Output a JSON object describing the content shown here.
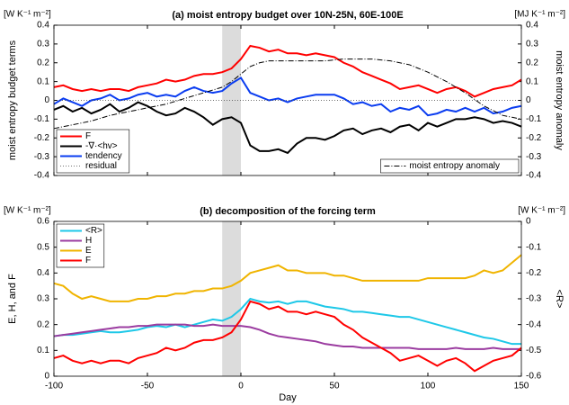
{
  "chart_data": [
    {
      "type": "line",
      "title": "(a)    moist entropy budget over 10N-25N, 60E-100E",
      "y_unit": "[W K⁻¹ m⁻²]",
      "y2_unit": "[MJ K⁻¹ m⁻²]",
      "ylabel": "moist entropy budget terms",
      "y2label": "moist entropy anomaly",
      "xlim": [
        -100,
        150
      ],
      "xticks": [
        -100,
        -50,
        0,
        50,
        100,
        150
      ],
      "show_xticklabels": false,
      "ylim": [
        -0.4,
        0.4
      ],
      "yticks": [
        -0.4,
        -0.3,
        -0.2,
        -0.1,
        0,
        0.1,
        0.2,
        0.3,
        0.4
      ],
      "y2lim": [
        -0.4,
        0.4
      ],
      "y2ticks": [
        -0.4,
        -0.3,
        -0.2,
        -0.1,
        0,
        0.1,
        0.2,
        0.3,
        0.4
      ],
      "shade": [
        -10,
        0
      ],
      "legend": "lower left",
      "legend2": "lower right",
      "x": [
        -100,
        -95,
        -90,
        -85,
        -80,
        -75,
        -70,
        -65,
        -60,
        -55,
        -50,
        -45,
        -40,
        -35,
        -30,
        -25,
        -20,
        -15,
        -10,
        -5,
        0,
        5,
        10,
        15,
        20,
        25,
        30,
        35,
        40,
        45,
        50,
        55,
        60,
        65,
        70,
        75,
        80,
        85,
        90,
        95,
        100,
        105,
        110,
        115,
        120,
        125,
        130,
        135,
        140,
        145,
        150
      ],
      "series": [
        {
          "name": "F",
          "color": "#ff0000",
          "dash": "solid",
          "width": 2,
          "values": [
            0.07,
            0.08,
            0.06,
            0.05,
            0.06,
            0.05,
            0.06,
            0.06,
            0.05,
            0.07,
            0.08,
            0.09,
            0.11,
            0.1,
            0.11,
            0.13,
            0.14,
            0.14,
            0.15,
            0.17,
            0.22,
            0.29,
            0.28,
            0.26,
            0.27,
            0.25,
            0.25,
            0.24,
            0.25,
            0.24,
            0.23,
            0.2,
            0.18,
            0.15,
            0.13,
            0.11,
            0.09,
            0.06,
            0.07,
            0.08,
            0.06,
            0.04,
            0.06,
            0.07,
            0.05,
            0.02,
            0.04,
            0.06,
            0.07,
            0.08,
            0.11
          ]
        },
        {
          "name": "-∇·<hv>",
          "color": "#000000",
          "dash": "solid",
          "width": 2,
          "values": [
            -0.05,
            -0.03,
            -0.06,
            -0.04,
            -0.07,
            -0.05,
            -0.02,
            -0.06,
            -0.04,
            -0.01,
            -0.03,
            -0.06,
            -0.08,
            -0.07,
            -0.04,
            -0.06,
            -0.09,
            -0.13,
            -0.1,
            -0.09,
            -0.12,
            -0.24,
            -0.27,
            -0.27,
            -0.26,
            -0.28,
            -0.23,
            -0.2,
            -0.2,
            -0.21,
            -0.19,
            -0.16,
            -0.15,
            -0.18,
            -0.16,
            -0.15,
            -0.17,
            -0.14,
            -0.13,
            -0.16,
            -0.12,
            -0.14,
            -0.12,
            -0.1,
            -0.1,
            -0.09,
            -0.1,
            -0.12,
            -0.11,
            -0.12,
            -0.14
          ]
        },
        {
          "name": "tendency",
          "color": "#0a3cf0",
          "dash": "solid",
          "width": 2,
          "values": [
            -0.02,
            0.01,
            -0.01,
            -0.03,
            0.0,
            0.01,
            0.03,
            0.0,
            0.01,
            0.03,
            0.04,
            0.02,
            0.03,
            0.02,
            0.05,
            0.07,
            0.05,
            0.04,
            0.05,
            0.09,
            0.12,
            0.04,
            0.02,
            0.0,
            0.01,
            -0.01,
            0.01,
            0.02,
            0.03,
            0.03,
            0.03,
            0.01,
            -0.02,
            -0.01,
            -0.03,
            -0.02,
            -0.06,
            -0.04,
            -0.05,
            -0.03,
            -0.08,
            -0.07,
            -0.05,
            -0.06,
            -0.04,
            -0.06,
            -0.04,
            -0.07,
            -0.06,
            -0.04,
            -0.03
          ]
        },
        {
          "name": "residual",
          "color": "#444444",
          "dash": "dotted",
          "width": 0.8,
          "values": [
            0,
            0,
            0,
            0,
            0,
            0,
            0,
            0,
            0,
            0,
            0,
            0,
            0,
            0,
            0,
            0,
            0,
            0,
            0,
            0,
            0,
            0,
            0,
            0,
            0,
            0,
            0,
            0,
            0,
            0,
            0,
            0,
            0,
            0,
            0,
            0,
            0,
            0,
            0,
            0,
            0,
            0,
            0,
            0,
            0,
            0,
            0,
            0,
            0,
            0,
            0
          ]
        },
        {
          "name": "moist entropy anomaly",
          "color": "#000000",
          "dash": "dashdot",
          "width": 1,
          "axis": "y2",
          "values": [
            -0.15,
            -0.14,
            -0.13,
            -0.12,
            -0.11,
            -0.095,
            -0.08,
            -0.07,
            -0.06,
            -0.05,
            -0.04,
            -0.03,
            -0.02,
            -0.005,
            0.01,
            0.025,
            0.04,
            0.055,
            0.07,
            0.1,
            0.14,
            0.18,
            0.2,
            0.21,
            0.21,
            0.21,
            0.21,
            0.21,
            0.21,
            0.21,
            0.215,
            0.22,
            0.22,
            0.22,
            0.22,
            0.215,
            0.21,
            0.2,
            0.19,
            0.17,
            0.15,
            0.125,
            0.1,
            0.07,
            0.04,
            0.005,
            -0.03,
            -0.055,
            -0.08,
            -0.09,
            -0.1
          ]
        }
      ]
    },
    {
      "type": "line",
      "title": "(b)    decomposition of the forcing term",
      "y_unit": "[W K⁻¹ m⁻²]",
      "y2_unit": "[W K⁻¹ m⁻²]",
      "ylabel": "E, H, and F",
      "y2label": "<R>",
      "xlabel": "Day",
      "xlim": [
        -100,
        150
      ],
      "xticks": [
        -100,
        -50,
        0,
        50,
        100,
        150
      ],
      "show_xticklabels": true,
      "ylim": [
        0,
        0.6
      ],
      "yticks": [
        0,
        0.1,
        0.2,
        0.3,
        0.4,
        0.5,
        0.6
      ],
      "y2lim": [
        -0.6,
        0
      ],
      "y2ticks": [
        -0.6,
        -0.5,
        -0.4,
        -0.3,
        -0.2,
        -0.1,
        0
      ],
      "shade": [
        -10,
        0
      ],
      "legend": "upper left",
      "x": [
        -100,
        -95,
        -90,
        -85,
        -80,
        -75,
        -70,
        -65,
        -60,
        -55,
        -50,
        -45,
        -40,
        -35,
        -30,
        -25,
        -20,
        -15,
        -10,
        -5,
        0,
        5,
        10,
        15,
        20,
        25,
        30,
        35,
        40,
        45,
        50,
        55,
        60,
        65,
        70,
        75,
        80,
        85,
        90,
        95,
        100,
        105,
        110,
        115,
        120,
        125,
        130,
        135,
        140,
        145,
        150
      ],
      "series": [
        {
          "name": "<R>",
          "color": "#1ec8e8",
          "dash": "solid",
          "width": 2,
          "axis": "y2",
          "values": [
            -0.445,
            -0.44,
            -0.44,
            -0.435,
            -0.43,
            -0.425,
            -0.43,
            -0.43,
            -0.425,
            -0.42,
            -0.41,
            -0.405,
            -0.41,
            -0.4,
            -0.41,
            -0.4,
            -0.39,
            -0.38,
            -0.385,
            -0.37,
            -0.34,
            -0.3,
            -0.31,
            -0.315,
            -0.31,
            -0.32,
            -0.31,
            -0.31,
            -0.32,
            -0.33,
            -0.335,
            -0.34,
            -0.35,
            -0.35,
            -0.355,
            -0.36,
            -0.365,
            -0.37,
            -0.37,
            -0.38,
            -0.39,
            -0.4,
            -0.41,
            -0.42,
            -0.43,
            -0.44,
            -0.45,
            -0.455,
            -0.465,
            -0.475,
            -0.475
          ]
        },
        {
          "name": "H",
          "color": "#9b3ca0",
          "dash": "solid",
          "width": 2,
          "values": [
            0.155,
            0.16,
            0.165,
            0.17,
            0.175,
            0.18,
            0.185,
            0.19,
            0.19,
            0.195,
            0.195,
            0.2,
            0.2,
            0.2,
            0.2,
            0.195,
            0.195,
            0.2,
            0.195,
            0.195,
            0.195,
            0.19,
            0.18,
            0.165,
            0.155,
            0.15,
            0.145,
            0.14,
            0.135,
            0.125,
            0.12,
            0.115,
            0.115,
            0.11,
            0.11,
            0.11,
            0.11,
            0.11,
            0.11,
            0.105,
            0.105,
            0.105,
            0.105,
            0.11,
            0.105,
            0.105,
            0.105,
            0.11,
            0.105,
            0.105,
            0.105
          ]
        },
        {
          "name": "E",
          "color": "#f0b400",
          "dash": "solid",
          "width": 2,
          "values": [
            0.36,
            0.35,
            0.32,
            0.3,
            0.31,
            0.3,
            0.29,
            0.29,
            0.29,
            0.3,
            0.3,
            0.31,
            0.31,
            0.32,
            0.32,
            0.33,
            0.33,
            0.34,
            0.34,
            0.35,
            0.37,
            0.4,
            0.41,
            0.42,
            0.43,
            0.41,
            0.41,
            0.4,
            0.4,
            0.4,
            0.39,
            0.39,
            0.38,
            0.37,
            0.37,
            0.37,
            0.37,
            0.37,
            0.37,
            0.37,
            0.38,
            0.38,
            0.38,
            0.38,
            0.38,
            0.39,
            0.41,
            0.4,
            0.41,
            0.44,
            0.47
          ]
        },
        {
          "name": "F",
          "color": "#ff0000",
          "dash": "solid",
          "width": 2,
          "values": [
            0.07,
            0.08,
            0.06,
            0.05,
            0.06,
            0.05,
            0.06,
            0.06,
            0.05,
            0.07,
            0.08,
            0.09,
            0.11,
            0.1,
            0.11,
            0.13,
            0.14,
            0.14,
            0.15,
            0.17,
            0.22,
            0.29,
            0.28,
            0.26,
            0.27,
            0.25,
            0.25,
            0.24,
            0.25,
            0.24,
            0.23,
            0.2,
            0.18,
            0.15,
            0.13,
            0.11,
            0.09,
            0.06,
            0.07,
            0.08,
            0.06,
            0.04,
            0.06,
            0.07,
            0.05,
            0.02,
            0.04,
            0.06,
            0.07,
            0.08,
            0.11
          ]
        }
      ]
    }
  ]
}
